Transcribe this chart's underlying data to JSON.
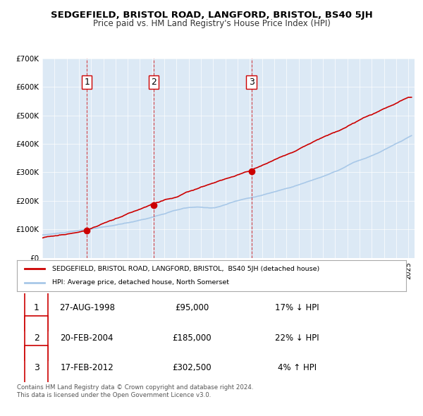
{
  "title": "SEDGEFIELD, BRISTOL ROAD, LANGFORD, BRISTOL, BS40 5JH",
  "subtitle": "Price paid vs. HM Land Registry's House Price Index (HPI)",
  "bg_color": "#dce9f5",
  "plot_bg_color": "#dce9f5",
  "hpi_color": "#a8c8e8",
  "price_color": "#cc0000",
  "purchases": [
    {
      "date": "1998-08-27",
      "price": 95000,
      "label": "1"
    },
    {
      "date": "2004-02-20",
      "price": 185000,
      "label": "2"
    },
    {
      "date": "2012-02-17",
      "price": 302500,
      "label": "3"
    }
  ],
  "legend_price_label": "SEDGEFIELD, BRISTOL ROAD, LANGFORD, BRISTOL,  BS40 5JH (detached house)",
  "legend_hpi_label": "HPI: Average price, detached house, North Somerset",
  "table_rows": [
    {
      "num": "1",
      "date": "27-AUG-1998",
      "price": "£95,000",
      "change": "17% ↓ HPI"
    },
    {
      "num": "2",
      "date": "20-FEB-2004",
      "price": "£185,000",
      "change": "22% ↓ HPI"
    },
    {
      "num": "3",
      "date": "17-FEB-2012",
      "price": "£302,500",
      "change": "4% ↑ HPI"
    }
  ],
  "footer": "Contains HM Land Registry data © Crown copyright and database right 2024.\nThis data is licensed under the Open Government Licence v3.0.",
  "ylim": [
    0,
    700000
  ],
  "yticks": [
    0,
    100000,
    200000,
    300000,
    400000,
    500000,
    600000,
    700000
  ],
  "ytick_labels": [
    "£0",
    "£100K",
    "£200K",
    "£300K",
    "£400K",
    "£500K",
    "£600K",
    "£700K"
  ],
  "xlim_start": 1995.0,
  "xlim_end": 2025.5
}
